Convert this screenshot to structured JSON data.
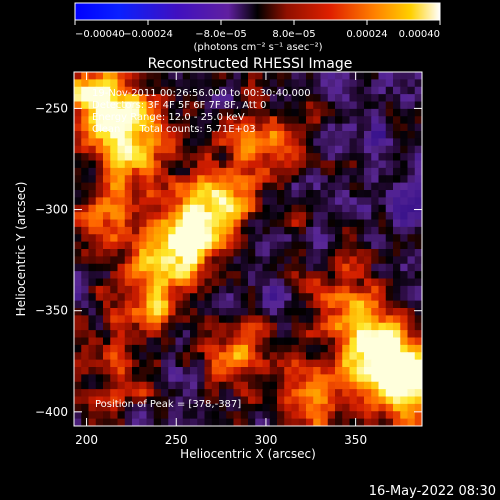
{
  "chart_data": {
    "type": "heatmap",
    "title": "Reconstructed RHESSI Image",
    "xlabel": "Heliocentric X (arcsec)",
    "ylabel": "Heliocentric Y (arcsec)",
    "xlim": [
      193,
      387
    ],
    "ylim": [
      -407,
      -232
    ],
    "x_ticks": [
      200,
      250,
      300,
      350
    ],
    "y_ticks": [
      -250,
      -300,
      -350,
      -400
    ],
    "x_tick_labels": [
      "200",
      "250",
      "300",
      "350"
    ],
    "y_tick_labels": [
      "−250",
      "−300",
      "−350",
      "−400"
    ],
    "colorbar": {
      "range": [
        -0.0004,
        0.0004
      ],
      "ticks": [
        -0.0004,
        -0.00024,
        -8e-05,
        8e-05,
        0.00024,
        0.0004
      ],
      "tick_labels": [
        "−0.00040",
        "−0.00024",
        "−8.0e−05",
        "8.0e−05",
        "0.00024",
        "0.00040"
      ],
      "unit_label": "(photons cm⁻² s⁻¹ asec⁻²)"
    },
    "bright_regions": [
      {
        "x": 225,
        "y": -262,
        "intensity": 0.95
      },
      {
        "x": 205,
        "y": -245,
        "intensity": 0.75
      },
      {
        "x": 268,
        "y": -300,
        "intensity": 0.9
      },
      {
        "x": 250,
        "y": -318,
        "intensity": 0.8
      },
      {
        "x": 235,
        "y": -345,
        "intensity": 0.55
      },
      {
        "x": 300,
        "y": -270,
        "intensity": 0.55
      },
      {
        "x": 210,
        "y": -300,
        "intensity": 0.45
      },
      {
        "x": 357,
        "y": -370,
        "intensity": 0.9
      },
      {
        "x": 378,
        "y": -387,
        "intensity": 1.0
      },
      {
        "x": 325,
        "y": -395,
        "intensity": 0.55
      },
      {
        "x": 285,
        "y": -375,
        "intensity": 0.5
      },
      {
        "x": 215,
        "y": -385,
        "intensity": 0.4
      },
      {
        "x": 345,
        "y": -340,
        "intensity": 0.45
      }
    ],
    "annotations": [
      "19-Nov-2011 00:26:56.000 to 00:30:40.000",
      "Detectors: 3F 4F 5F 6F 7F 8F, Att 0",
      "Energy Range: 12.0 - 25.0 keV",
      "Clean      Total counts: 5.71E+03"
    ],
    "peak_label": "Position of Peak = [378,-387]",
    "grid": false
  },
  "footer": {
    "timestamp": "16-May-2022 08:30"
  }
}
